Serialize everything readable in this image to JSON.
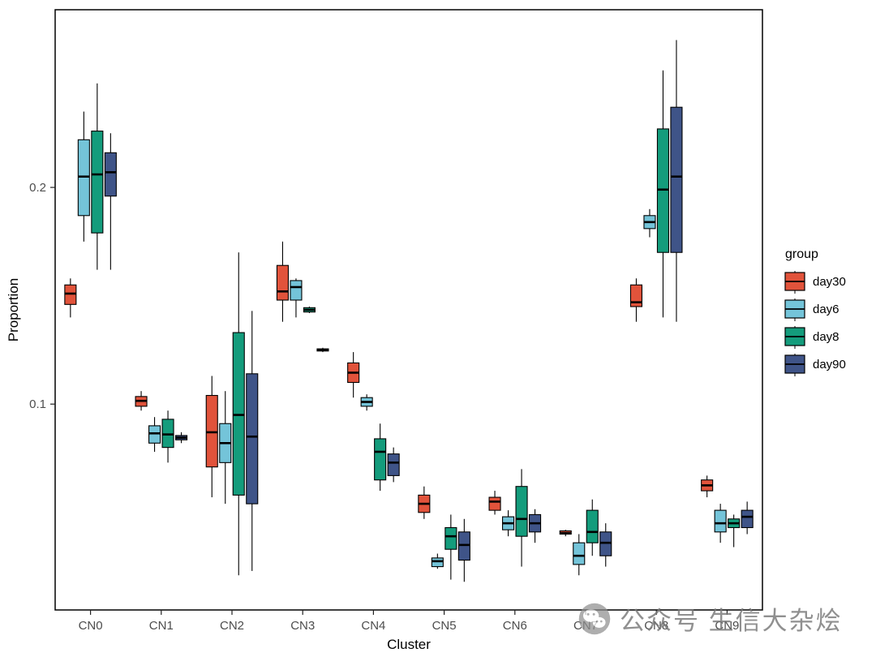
{
  "chart_data": {
    "type": "boxplot",
    "title": "",
    "xlabel": "Cluster",
    "ylabel": "Proportion",
    "legend_title": "group",
    "legend_position": "right",
    "grid": false,
    "categories": [
      "CN0",
      "CN1",
      "CN2",
      "CN3",
      "CN4",
      "CN5",
      "CN6",
      "CN7",
      "CN8",
      "CN9"
    ],
    "ylim": [
      0.005,
      0.282
    ],
    "yticks": [
      0.1,
      0.2
    ],
    "series": [
      {
        "name": "day30",
        "color": "#E1533B",
        "boxes": [
          {
            "low": 0.14,
            "q1": 0.146,
            "median": 0.151,
            "q3": 0.155,
            "high": 0.158
          },
          {
            "low": 0.097,
            "q1": 0.099,
            "median": 0.1015,
            "q3": 0.1035,
            "high": 0.106
          },
          {
            "low": 0.057,
            "q1": 0.071,
            "median": 0.087,
            "q3": 0.104,
            "high": 0.113
          },
          {
            "low": 0.138,
            "q1": 0.148,
            "median": 0.152,
            "q3": 0.164,
            "high": 0.175
          },
          {
            "low": 0.103,
            "q1": 0.11,
            "median": 0.1145,
            "q3": 0.119,
            "high": 0.124
          },
          {
            "low": 0.047,
            "q1": 0.05,
            "median": 0.054,
            "q3": 0.058,
            "high": 0.062
          },
          {
            "low": 0.049,
            "q1": 0.051,
            "median": 0.055,
            "q3": 0.057,
            "high": 0.06
          },
          {
            "low": 0.039,
            "q1": 0.04,
            "median": 0.0405,
            "q3": 0.0415,
            "high": 0.042
          },
          {
            "low": 0.138,
            "q1": 0.145,
            "median": 0.147,
            "q3": 0.155,
            "high": 0.158
          },
          {
            "low": 0.057,
            "q1": 0.06,
            "median": 0.0625,
            "q3": 0.065,
            "high": 0.067
          }
        ]
      },
      {
        "name": "day6",
        "color": "#74C4D9",
        "boxes": [
          {
            "low": 0.175,
            "q1": 0.187,
            "median": 0.205,
            "q3": 0.222,
            "high": 0.235
          },
          {
            "low": 0.078,
            "q1": 0.082,
            "median": 0.0865,
            "q3": 0.09,
            "high": 0.094
          },
          {
            "low": 0.054,
            "q1": 0.073,
            "median": 0.082,
            "q3": 0.091,
            "high": 0.106
          },
          {
            "low": 0.14,
            "q1": 0.148,
            "median": 0.154,
            "q3": 0.157,
            "high": 0.158
          },
          {
            "low": 0.097,
            "q1": 0.099,
            "median": 0.101,
            "q3": 0.103,
            "high": 0.1045
          },
          {
            "low": 0.024,
            "q1": 0.025,
            "median": 0.0275,
            "q3": 0.029,
            "high": 0.031
          },
          {
            "low": 0.039,
            "q1": 0.042,
            "median": 0.045,
            "q3": 0.048,
            "high": 0.051
          },
          {
            "low": 0.021,
            "q1": 0.026,
            "median": 0.03,
            "q3": 0.036,
            "high": 0.04
          },
          {
            "low": 0.177,
            "q1": 0.181,
            "median": 0.184,
            "q3": 0.187,
            "high": 0.19
          },
          {
            "low": 0.036,
            "q1": 0.041,
            "median": 0.045,
            "q3": 0.051,
            "high": 0.054
          }
        ]
      },
      {
        "name": "day8",
        "color": "#149C7C",
        "boxes": [
          {
            "low": 0.162,
            "q1": 0.179,
            "median": 0.206,
            "q3": 0.226,
            "high": 0.248
          },
          {
            "low": 0.073,
            "q1": 0.08,
            "median": 0.086,
            "q3": 0.093,
            "high": 0.097
          },
          {
            "low": 0.021,
            "q1": 0.058,
            "median": 0.095,
            "q3": 0.133,
            "high": 0.17
          },
          {
            "low": 0.142,
            "q1": 0.1425,
            "median": 0.1435,
            "q3": 0.1445,
            "high": 0.145
          },
          {
            "low": 0.06,
            "q1": 0.065,
            "median": 0.078,
            "q3": 0.084,
            "high": 0.091
          },
          {
            "low": 0.019,
            "q1": 0.033,
            "median": 0.039,
            "q3": 0.043,
            "high": 0.049
          },
          {
            "low": 0.025,
            "q1": 0.039,
            "median": 0.047,
            "q3": 0.062,
            "high": 0.07
          },
          {
            "low": 0.03,
            "q1": 0.036,
            "median": 0.041,
            "q3": 0.051,
            "high": 0.056
          },
          {
            "low": 0.14,
            "q1": 0.17,
            "median": 0.199,
            "q3": 0.227,
            "high": 0.254
          },
          {
            "low": 0.034,
            "q1": 0.043,
            "median": 0.045,
            "q3": 0.047,
            "high": 0.049
          }
        ]
      },
      {
        "name": "day90",
        "color": "#3F5488",
        "boxes": [
          {
            "low": 0.162,
            "q1": 0.196,
            "median": 0.207,
            "q3": 0.216,
            "high": 0.225
          },
          {
            "low": 0.082,
            "q1": 0.0835,
            "median": 0.0845,
            "q3": 0.0855,
            "high": 0.087
          },
          {
            "low": 0.023,
            "q1": 0.054,
            "median": 0.085,
            "q3": 0.114,
            "high": 0.143
          },
          {
            "low": 0.124,
            "q1": 0.1245,
            "median": 0.125,
            "q3": 0.1255,
            "high": 0.126
          },
          {
            "low": 0.064,
            "q1": 0.067,
            "median": 0.073,
            "q3": 0.077,
            "high": 0.08
          },
          {
            "low": 0.018,
            "q1": 0.028,
            "median": 0.035,
            "q3": 0.041,
            "high": 0.047
          },
          {
            "low": 0.036,
            "q1": 0.041,
            "median": 0.045,
            "q3": 0.049,
            "high": 0.0515
          },
          {
            "low": 0.025,
            "q1": 0.03,
            "median": 0.036,
            "q3": 0.041,
            "high": 0.045
          },
          {
            "low": 0.138,
            "q1": 0.17,
            "median": 0.205,
            "q3": 0.237,
            "high": 0.268
          },
          {
            "low": 0.04,
            "q1": 0.043,
            "median": 0.048,
            "q3": 0.051,
            "high": 0.055
          }
        ]
      }
    ],
    "colors": {
      "day30": "#E1533B",
      "day6": "#74C4D9",
      "day8": "#149C7C",
      "day90": "#3F5488",
      "box_border": "#000000",
      "median_line": "#000000",
      "panel_border": "#000000",
      "axis_text": "#4d4d4d"
    }
  },
  "watermark": {
    "text": "公众号 生信大杂烩",
    "icon": "wechat-icon"
  }
}
